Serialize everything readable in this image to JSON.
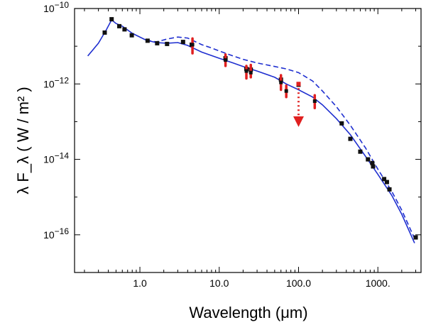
{
  "chart_data": {
    "type": "scatter",
    "title": "",
    "xlabel": "Wavelength (μm)",
    "ylabel": "λ F_λ  ( W / m² )",
    "xscale": "log",
    "yscale": "log",
    "xlim": [
      0.15,
      3500
    ],
    "ylim": [
      1e-17,
      1e-10
    ],
    "x_ticks": [
      {
        "value": 1,
        "label": "1.0"
      },
      {
        "value": 10,
        "label": "10.0"
      },
      {
        "value": 100,
        "label": "100.0"
      },
      {
        "value": 1000,
        "label": "1000."
      }
    ],
    "y_ticks": [
      {
        "value": 1e-16,
        "mantissa": "10",
        "exp": "−16"
      },
      {
        "value": 1e-14,
        "mantissa": "10",
        "exp": "−14"
      },
      {
        "value": 1e-12,
        "mantissa": "10",
        "exp": "−12"
      },
      {
        "value": 1e-10,
        "mantissa": "10",
        "exp": "−10"
      }
    ],
    "series": [
      {
        "name": "model_solid",
        "style": "solid",
        "color": "#1f2fd0",
        "points": [
          [
            0.22,
            5.5e-12
          ],
          [
            0.3,
            1.2e-11
          ],
          [
            0.38,
            2.8e-11
          ],
          [
            0.44,
            5e-11
          ],
          [
            0.5,
            4e-11
          ],
          [
            0.6,
            3.4e-11
          ],
          [
            0.8,
            2.2e-11
          ],
          [
            1.2,
            1.45e-11
          ],
          [
            1.6,
            1.25e-11
          ],
          [
            2.2,
            1.2e-11
          ],
          [
            3.0,
            1.25e-11
          ],
          [
            4.0,
            1.05e-11
          ],
          [
            6.0,
            7e-12
          ],
          [
            10,
            4.8e-12
          ],
          [
            15,
            3.6e-12
          ],
          [
            20,
            2.9e-12
          ],
          [
            30,
            2.2e-12
          ],
          [
            50,
            1.5e-12
          ],
          [
            70,
            1e-12
          ],
          [
            100,
            7e-13
          ],
          [
            150,
            4.5e-13
          ],
          [
            200,
            2.8e-13
          ],
          [
            300,
            1.2e-13
          ],
          [
            450,
            4.5e-14
          ],
          [
            700,
            1.2e-14
          ],
          [
            1000,
            4e-15
          ],
          [
            1500,
            1.1e-15
          ],
          [
            2000,
            3.5e-16
          ],
          [
            2900,
            6e-17
          ]
        ]
      },
      {
        "name": "model_dashed",
        "style": "dashed",
        "color": "#1f2fd0",
        "points": [
          [
            1.2,
            1.45e-11
          ],
          [
            1.6,
            1.3e-11
          ],
          [
            2.2,
            1.55e-11
          ],
          [
            3.0,
            1.75e-11
          ],
          [
            4.0,
            1.65e-11
          ],
          [
            6.0,
            1.1e-11
          ],
          [
            8,
            9e-12
          ],
          [
            10,
            7.5e-12
          ],
          [
            15,
            5.5e-12
          ],
          [
            20,
            4.5e-12
          ],
          [
            30,
            3.6e-12
          ],
          [
            50,
            2.9e-12
          ],
          [
            70,
            2.5e-12
          ],
          [
            100,
            2e-12
          ],
          [
            150,
            1.2e-12
          ],
          [
            200,
            6.5e-13
          ],
          [
            300,
            2.5e-13
          ],
          [
            450,
            8e-14
          ],
          [
            700,
            2e-14
          ],
          [
            1000,
            5.5e-15
          ],
          [
            1500,
            1.4e-15
          ],
          [
            2000,
            4.5e-16
          ],
          [
            2900,
            8e-17
          ]
        ]
      }
    ],
    "photometry": {
      "color": "#111111",
      "points": [
        [
          0.36,
          2.3e-11
        ],
        [
          0.44,
          5.2e-11
        ],
        [
          0.55,
          3.4e-11
        ],
        [
          0.64,
          2.8e-11
        ],
        [
          0.79,
          1.95e-11
        ],
        [
          1.25,
          1.4e-11
        ],
        [
          1.65,
          1.2e-11
        ],
        [
          2.2,
          1.15e-11
        ],
        [
          3.5,
          1.3e-11
        ],
        [
          4.5,
          1.1e-11
        ],
        [
          12,
          4.8e-12
        ],
        [
          22,
          2.5e-12
        ],
        [
          25,
          2.4e-12
        ],
        [
          60,
          1.3e-12
        ],
        [
          100,
          9.5e-13
        ],
        [
          350,
          9e-14
        ],
        [
          450,
          3.5e-14
        ],
        [
          600,
          1.6e-14
        ],
        [
          750,
          1e-14
        ],
        [
          850,
          8e-15
        ],
        [
          870,
          6.5e-15
        ],
        [
          1200,
          3e-15
        ],
        [
          1300,
          2.5e-15
        ],
        [
          1400,
          1.6e-15
        ],
        [
          3000,
          8.5e-17
        ]
      ]
    },
    "error_points": {
      "color": "#e02020",
      "points": [
        {
          "x": 4.6,
          "y": 1.1e-11,
          "lo": 6.5e-12,
          "hi": 1.6e-11
        },
        {
          "x": 12,
          "y": 4.3e-12,
          "lo": 3e-12,
          "hi": 6e-12
        },
        {
          "x": 22,
          "y": 2.2e-12,
          "lo": 1.4e-12,
          "hi": 3e-12
        },
        {
          "x": 25,
          "y": 2e-12,
          "lo": 1.5e-12,
          "hi": 3.2e-12
        },
        {
          "x": 60,
          "y": 1.1e-12,
          "lo": 7e-13,
          "hi": 1.7e-12
        },
        {
          "x": 70,
          "y": 6.5e-13,
          "lo": 4.5e-13,
          "hi": 9e-13
        },
        {
          "x": 160,
          "y": 3.5e-13,
          "lo": 2.3e-13,
          "hi": 5e-13
        }
      ]
    },
    "upper_limit": {
      "color": "#e02020",
      "x": 100,
      "y_top": 1e-12,
      "y_bottom": 1e-13
    }
  }
}
